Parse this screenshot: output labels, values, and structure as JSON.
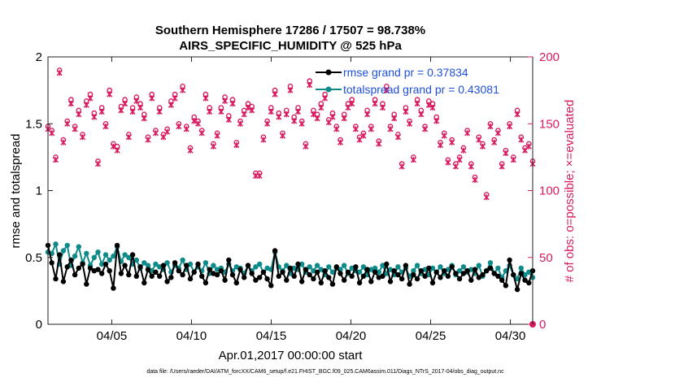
{
  "chart_data": {
    "type": "line",
    "title": "Southern Hemisphere 17286 / 17507 = 98.738%",
    "subtitle": "AIRS_SPECIFIC_HUMIDITY @ 525 hPa",
    "xlabel": "Apr.01,2017 00:00:00 start",
    "ylabel_left": "rmse and totalspread",
    "ylabel_right": "# of obs: o=possible; ×=evaluated",
    "x_range": [
      1,
      31.4
    ],
    "ylim_left": [
      0,
      2
    ],
    "ylim_right": [
      0,
      200
    ],
    "x_ticks": [
      {
        "value": 5,
        "label": "04/05"
      },
      {
        "value": 10,
        "label": "04/10"
      },
      {
        "value": 15,
        "label": "04/15"
      },
      {
        "value": 20,
        "label": "04/20"
      },
      {
        "value": 25,
        "label": "04/25"
      },
      {
        "value": 30,
        "label": "04/30"
      }
    ],
    "y_ticks_left": [
      "0",
      "0.5",
      "1",
      "1.5",
      "2"
    ],
    "y_ticks_right": [
      "0",
      "50",
      "100",
      "150",
      "200"
    ],
    "legend": [
      "rmse grand pr = 0.37834",
      "totalspread grand pr = 0.43081"
    ],
    "footnote": "data file: /Users/raeder/DAI/ATM_forcXX/CAM6_setup/f.e21.FHIST_BGC.f09_025.CAM6assim.011/Diags_NTrS_2017-04/obs_diag_output.nc",
    "colors": {
      "rmse": "#000000",
      "spread": "#0e8a8a",
      "obs": "#d81b60"
    },
    "series": [
      {
        "name": "rmse",
        "axis": "left",
        "values": [
          0.59,
          0.46,
          0.34,
          0.52,
          0.32,
          0.43,
          0.48,
          0.37,
          0.42,
          0.45,
          0.3,
          0.42,
          0.4,
          0.41,
          0.38,
          0.45,
          0.4,
          0.27,
          0.59,
          0.38,
          0.44,
          0.37,
          0.52,
          0.36,
          0.43,
          0.31,
          0.41,
          0.36,
          0.39,
          0.36,
          0.44,
          0.32,
          0.35,
          0.46,
          0.4,
          0.37,
          0.44,
          0.34,
          0.39,
          0.45,
          0.36,
          0.31,
          0.41,
          0.38,
          0.37,
          0.4,
          0.33,
          0.48,
          0.37,
          0.31,
          0.41,
          0.35,
          0.44,
          0.38,
          0.33,
          0.35,
          0.39,
          0.34,
          0.29,
          0.55,
          0.36,
          0.39,
          0.33,
          0.42,
          0.36,
          0.45,
          0.32,
          0.41,
          0.37,
          0.34,
          0.39,
          0.31,
          0.4,
          0.35,
          0.3,
          0.43,
          0.38,
          0.33,
          0.39,
          0.36,
          0.43,
          0.31,
          0.36,
          0.41,
          0.32,
          0.39,
          0.35,
          0.36,
          0.45,
          0.32,
          0.4,
          0.37,
          0.34,
          0.44,
          0.3,
          0.37,
          0.34,
          0.4,
          0.36,
          0.42,
          0.31,
          0.39,
          0.35,
          0.4,
          0.36,
          0.43,
          0.38,
          0.34,
          0.38,
          0.4,
          0.33,
          0.41,
          0.35,
          0.37,
          0.4,
          0.42,
          0.38,
          0.36,
          0.33,
          0.29,
          0.48,
          0.37,
          0.26,
          0.38,
          0.33,
          0.31,
          0.4
        ]
      },
      {
        "name": "totalspread",
        "axis": "left",
        "values": [
          0.54,
          0.53,
          0.6,
          0.45,
          0.55,
          0.59,
          0.44,
          0.51,
          0.58,
          0.46,
          0.53,
          0.44,
          0.5,
          0.54,
          0.45,
          0.52,
          0.48,
          0.51,
          0.58,
          0.47,
          0.52,
          0.5,
          0.45,
          0.48,
          0.42,
          0.46,
          0.44,
          0.4,
          0.45,
          0.43,
          0.41,
          0.46,
          0.39,
          0.44,
          0.42,
          0.48,
          0.41,
          0.45,
          0.39,
          0.43,
          0.4,
          0.46,
          0.38,
          0.44,
          0.41,
          0.42,
          0.39,
          0.45,
          0.4,
          0.43,
          0.42,
          0.38,
          0.44,
          0.4,
          0.43,
          0.45,
          0.39,
          0.42,
          0.41,
          0.54,
          0.43,
          0.4,
          0.44,
          0.38,
          0.42,
          0.41,
          0.45,
          0.39,
          0.43,
          0.4,
          0.44,
          0.41,
          0.37,
          0.43,
          0.39,
          0.42,
          0.41,
          0.44,
          0.38,
          0.42,
          0.4,
          0.39,
          0.43,
          0.37,
          0.41,
          0.42,
          0.39,
          0.44,
          0.38,
          0.41,
          0.37,
          0.43,
          0.39,
          0.42,
          0.36,
          0.4,
          0.44,
          0.38,
          0.41,
          0.37,
          0.42,
          0.39,
          0.43,
          0.38,
          0.41,
          0.44,
          0.37,
          0.4,
          0.43,
          0.39,
          0.41,
          0.38,
          0.44,
          0.36,
          0.4,
          0.46,
          0.38,
          0.42,
          0.35,
          0.4,
          0.44,
          0.37,
          0.34,
          0.42,
          0.37,
          0.39,
          0.35
        ]
      },
      {
        "name": "obs_possible",
        "axis": "right",
        "values": [
          148,
          145,
          125,
          190,
          138,
          152,
          168,
          148,
          160,
          142,
          167,
          172,
          158,
          122,
          162,
          150,
          175,
          135,
          133,
          163,
          168,
          142,
          162,
          170,
          165,
          157,
          140,
          172,
          145,
          162,
          142,
          146,
          167,
          172,
          150,
          178,
          148,
          132,
          155,
          152,
          145,
          172,
          162,
          135,
          143,
          162,
          170,
          156,
          168,
          136,
          152,
          160,
          165,
          163,
          113,
          113,
          140,
          152,
          162,
          175,
          158,
          143,
          160,
          178,
          155,
          162,
          152,
          135,
          182,
          160,
          157,
          165,
          172,
          153,
          158,
          148,
          138,
          157,
          165,
          168,
          148,
          140,
          143,
          160,
          148,
          168,
          137,
          165,
          178,
          148,
          157,
          142,
          120,
          162,
          152,
          125,
          168,
          160,
          148,
          167,
          165,
          155,
          136,
          143,
          123,
          138,
          120,
          125,
          132,
          145,
          120,
          110,
          140,
          135,
          97,
          150,
          138,
          145,
          120,
          130,
          150,
          125,
          160,
          140,
          132,
          135,
          122
        ]
      },
      {
        "name": "obs_evaluated",
        "axis": "right",
        "values": [
          146,
          143,
          123,
          188,
          136,
          150,
          165,
          146,
          157,
          140,
          164,
          169,
          155,
          120,
          159,
          148,
          172,
          133,
          130,
          160,
          165,
          140,
          159,
          167,
          162,
          154,
          138,
          169,
          143,
          159,
          140,
          144,
          164,
          169,
          148,
          175,
          146,
          130,
          152,
          150,
          143,
          169,
          159,
          133,
          141,
          159,
          167,
          153,
          165,
          134,
          150,
          157,
          162,
          160,
          111,
          111,
          138,
          150,
          159,
          172,
          155,
          141,
          157,
          175,
          152,
          159,
          150,
          133,
          179,
          157,
          154,
          162,
          169,
          151,
          155,
          146,
          136,
          154,
          162,
          165,
          146,
          138,
          141,
          157,
          146,
          165,
          135,
          162,
          175,
          146,
          154,
          140,
          118,
          159,
          150,
          123,
          165,
          157,
          146,
          164,
          162,
          152,
          134,
          141,
          121,
          136,
          118,
          123,
          130,
          143,
          118,
          108,
          138,
          133,
          95,
          148,
          136,
          143,
          118,
          128,
          148,
          123,
          157,
          138,
          130,
          133,
          120
        ]
      }
    ]
  }
}
